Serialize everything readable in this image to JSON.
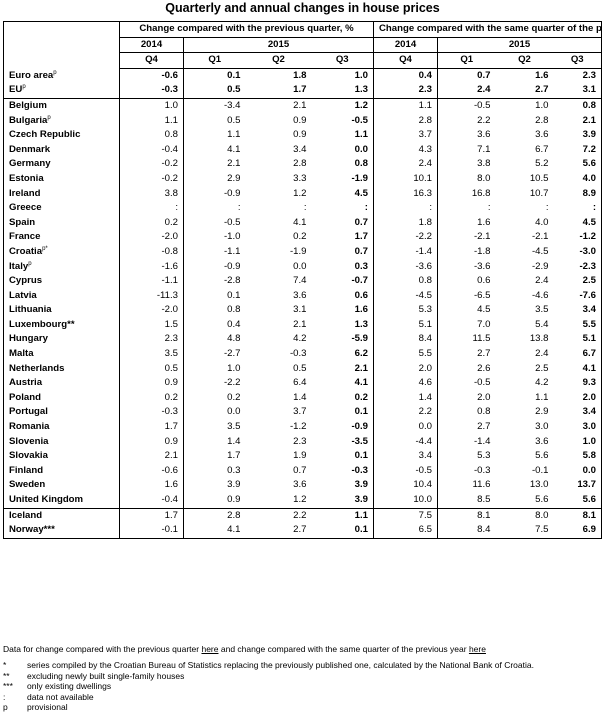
{
  "title": "Quarterly and annual changes in house prices",
  "header": {
    "qoq": "Change compared with the previous quarter, %",
    "yoy": "Change compared with the same quarter of the previous year, %",
    "years": [
      "2014",
      "2015"
    ],
    "quarters": [
      "Q4",
      "Q1",
      "Q2",
      "Q3"
    ]
  },
  "rows": [
    {
      "name": "Euro area",
      "sup": "p",
      "qoq": [
        "-0.6",
        "0.1",
        "1.8",
        "1.0"
      ],
      "yoy": [
        "0.4",
        "0.7",
        "1.6",
        "2.3"
      ],
      "aggregate": true
    },
    {
      "name": "EU",
      "sup": "p",
      "qoq": [
        "-0.3",
        "0.5",
        "1.7",
        "1.3"
      ],
      "yoy": [
        "2.3",
        "2.4",
        "2.7",
        "3.1"
      ],
      "aggregate": true
    },
    {
      "name": "Belgium",
      "sup": "",
      "qoq": [
        "1.0",
        "-3.4",
        "2.1",
        "1.2"
      ],
      "yoy": [
        "1.1",
        "-0.5",
        "1.0",
        "0.8"
      ],
      "sep": true
    },
    {
      "name": "Bulgaria",
      "sup": "p",
      "qoq": [
        "1.1",
        "0.5",
        "0.9",
        "-0.5"
      ],
      "yoy": [
        "2.8",
        "2.2",
        "2.8",
        "2.1"
      ]
    },
    {
      "name": "Czech Republic",
      "sup": "",
      "qoq": [
        "0.8",
        "1.1",
        "0.9",
        "1.1"
      ],
      "yoy": [
        "3.7",
        "3.6",
        "3.6",
        "3.9"
      ]
    },
    {
      "name": "Denmark",
      "sup": "",
      "qoq": [
        "-0.4",
        "4.1",
        "3.4",
        "0.0"
      ],
      "yoy": [
        "4.3",
        "7.1",
        "6.7",
        "7.2"
      ]
    },
    {
      "name": "Germany",
      "sup": "",
      "qoq": [
        "-0.2",
        "2.1",
        "2.8",
        "0.8"
      ],
      "yoy": [
        "2.4",
        "3.8",
        "5.2",
        "5.6"
      ]
    },
    {
      "name": "Estonia",
      "sup": "",
      "qoq": [
        "-0.2",
        "2.9",
        "3.3",
        "-1.9"
      ],
      "yoy": [
        "10.1",
        "8.0",
        "10.5",
        "4.0"
      ]
    },
    {
      "name": "Ireland",
      "sup": "",
      "qoq": [
        "3.8",
        "-0.9",
        "1.2",
        "4.5"
      ],
      "yoy": [
        "16.3",
        "16.8",
        "10.7",
        "8.9"
      ]
    },
    {
      "name": "Greece",
      "sup": "",
      "qoq": [
        ":",
        ":",
        ":",
        ":"
      ],
      "yoy": [
        ":",
        ":",
        ":",
        ":"
      ]
    },
    {
      "name": "Spain",
      "sup": "",
      "qoq": [
        "0.2",
        "-0.5",
        "4.1",
        "0.7"
      ],
      "yoy": [
        "1.8",
        "1.6",
        "4.0",
        "4.5"
      ]
    },
    {
      "name": "France",
      "sup": "",
      "qoq": [
        "-2.0",
        "-1.0",
        "0.2",
        "1.7"
      ],
      "yoy": [
        "-2.2",
        "-2.1",
        "-2.1",
        "-1.2"
      ]
    },
    {
      "name": "Croatia",
      "sup": "p*",
      "qoq": [
        "-0.8",
        "-1.1",
        "-1.9",
        "0.7"
      ],
      "yoy": [
        "-1.4",
        "-1.8",
        "-4.5",
        "-3.0"
      ]
    },
    {
      "name": "Italy",
      "sup": "p",
      "qoq": [
        "-1.6",
        "-0.9",
        "0.0",
        "0.3"
      ],
      "yoy": [
        "-3.6",
        "-3.6",
        "-2.9",
        "-2.3"
      ]
    },
    {
      "name": "Cyprus",
      "sup": "",
      "qoq": [
        "-1.1",
        "-2.8",
        "7.4",
        "-0.7"
      ],
      "yoy": [
        "0.8",
        "0.6",
        "2.4",
        "2.5"
      ]
    },
    {
      "name": "Latvia",
      "sup": "",
      "qoq": [
        "-11.3",
        "0.1",
        "3.6",
        "0.6"
      ],
      "yoy": [
        "-4.5",
        "-6.5",
        "-4.6",
        "-7.6"
      ]
    },
    {
      "name": "Lithuania",
      "sup": "",
      "qoq": [
        "-2.0",
        "0.8",
        "3.1",
        "1.6"
      ],
      "yoy": [
        "5.3",
        "4.5",
        "3.5",
        "3.4"
      ]
    },
    {
      "name": "Luxembourg**",
      "sup": "",
      "qoq": [
        "1.5",
        "0.4",
        "2.1",
        "1.3"
      ],
      "yoy": [
        "5.1",
        "7.0",
        "5.4",
        "5.5"
      ]
    },
    {
      "name": "Hungary",
      "sup": "",
      "qoq": [
        "2.3",
        "4.8",
        "4.2",
        "-5.9"
      ],
      "yoy": [
        "8.4",
        "11.5",
        "13.8",
        "5.1"
      ]
    },
    {
      "name": "Malta",
      "sup": "",
      "qoq": [
        "3.5",
        "-2.7",
        "-0.3",
        "6.2"
      ],
      "yoy": [
        "5.5",
        "2.7",
        "2.4",
        "6.7"
      ]
    },
    {
      "name": "Netherlands",
      "sup": "",
      "qoq": [
        "0.5",
        "1.0",
        "0.5",
        "2.1"
      ],
      "yoy": [
        "2.0",
        "2.6",
        "2.5",
        "4.1"
      ]
    },
    {
      "name": "Austria",
      "sup": "",
      "qoq": [
        "0.9",
        "-2.2",
        "6.4",
        "4.1"
      ],
      "yoy": [
        "4.6",
        "-0.5",
        "4.2",
        "9.3"
      ]
    },
    {
      "name": "Poland",
      "sup": "",
      "qoq": [
        "0.2",
        "0.2",
        "1.4",
        "0.2"
      ],
      "yoy": [
        "1.4",
        "2.0",
        "1.1",
        "2.0"
      ]
    },
    {
      "name": "Portugal",
      "sup": "",
      "qoq": [
        "-0.3",
        "0.0",
        "3.7",
        "0.1"
      ],
      "yoy": [
        "2.2",
        "0.8",
        "2.9",
        "3.4"
      ]
    },
    {
      "name": "Romania",
      "sup": "",
      "qoq": [
        "1.7",
        "3.5",
        "-1.2",
        "-0.9"
      ],
      "yoy": [
        "0.0",
        "2.7",
        "3.0",
        "3.0"
      ]
    },
    {
      "name": "Slovenia",
      "sup": "",
      "qoq": [
        "0.9",
        "1.4",
        "2.3",
        "-3.5"
      ],
      "yoy": [
        "-4.4",
        "-1.4",
        "3.6",
        "1.0"
      ]
    },
    {
      "name": "Slovakia",
      "sup": "",
      "qoq": [
        "2.1",
        "1.7",
        "1.9",
        "0.1"
      ],
      "yoy": [
        "3.4",
        "5.3",
        "5.6",
        "5.8"
      ]
    },
    {
      "name": "Finland",
      "sup": "",
      "qoq": [
        "-0.6",
        "0.3",
        "0.7",
        "-0.3"
      ],
      "yoy": [
        "-0.5",
        "-0.3",
        "-0.1",
        "0.0"
      ]
    },
    {
      "name": "Sweden",
      "sup": "",
      "qoq": [
        "1.6",
        "3.9",
        "3.6",
        "3.9"
      ],
      "yoy": [
        "10.4",
        "11.6",
        "13.0",
        "13.7"
      ]
    },
    {
      "name": "United Kingdom",
      "sup": "",
      "qoq": [
        "-0.4",
        "0.9",
        "1.2",
        "3.9"
      ],
      "yoy": [
        "10.0",
        "8.5",
        "5.6",
        "5.6"
      ]
    },
    {
      "name": "Iceland",
      "sup": "",
      "qoq": [
        "1.7",
        "2.8",
        "2.2",
        "1.1"
      ],
      "yoy": [
        "7.5",
        "8.1",
        "8.0",
        "8.1"
      ],
      "sep": true
    },
    {
      "name": "Norway***",
      "sup": "",
      "qoq": [
        "-0.1",
        "4.1",
        "2.7",
        "0.1"
      ],
      "yoy": [
        "6.5",
        "8.4",
        "7.5",
        "6.9"
      ]
    }
  ],
  "footer": {
    "part1": "Data for change compared with the previous quarter",
    "link1": "here",
    "part2": "and change compared with the same quarter of the previous year",
    "link2": "here"
  },
  "notes": [
    {
      "sym": "*",
      "text": "series compiled by the Croatian Bureau of Statistics replacing the previously published one, calculated by the National Bank of Croatia."
    },
    {
      "sym": "**",
      "text": "excluding newly built single-family houses"
    },
    {
      "sym": "***",
      "text": "only existing dwellings"
    },
    {
      "sym": ":",
      "text": "data not available"
    },
    {
      "sym": "p",
      "text": "provisional"
    }
  ]
}
